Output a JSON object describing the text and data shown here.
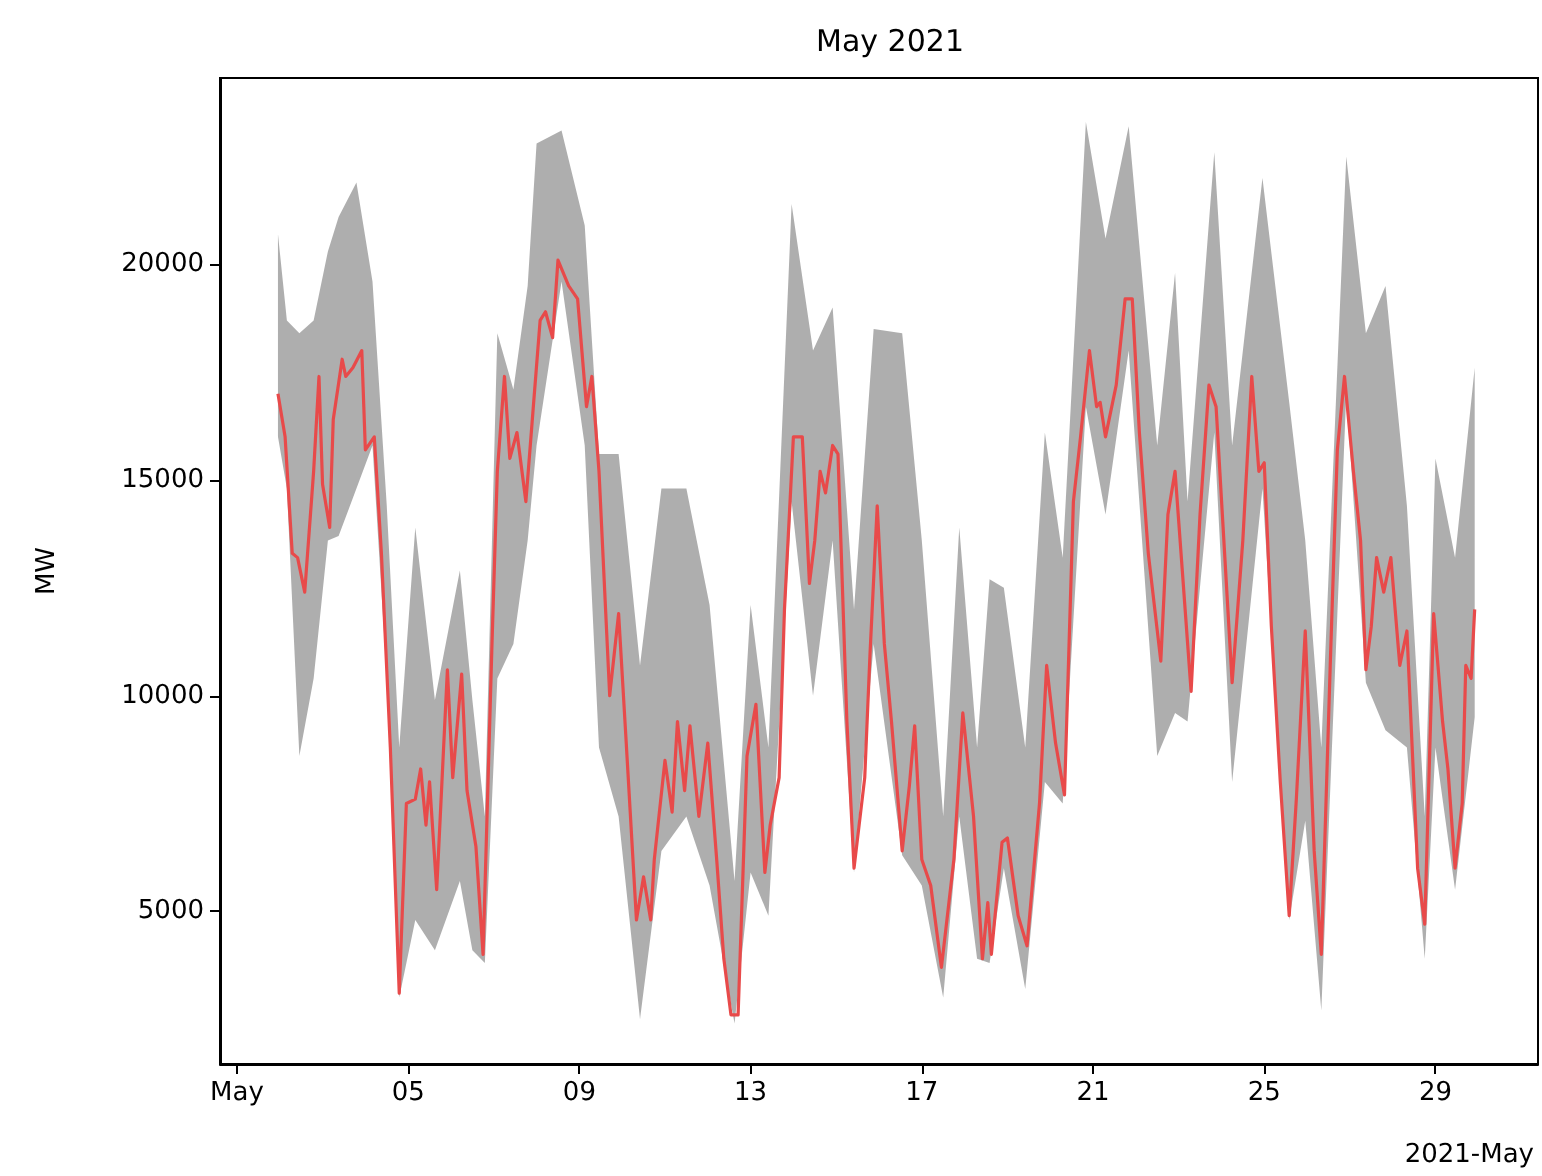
{
  "chart_data": {
    "type": "line",
    "title": "May 2021",
    "ylabel": "MW",
    "annotations": [
      "2021-May"
    ],
    "xlim": [
      "2021-04-30T14:30",
      "2021-05-31T09:30"
    ],
    "xticks": [
      {
        "value": "2021-05-01",
        "label": "May"
      },
      {
        "value": "2021-05-05",
        "label": "05"
      },
      {
        "value": "2021-05-09",
        "label": "09"
      },
      {
        "value": "2021-05-13",
        "label": "13"
      },
      {
        "value": "2021-05-17",
        "label": "17"
      },
      {
        "value": "2021-05-21",
        "label": "21"
      },
      {
        "value": "2021-05-25",
        "label": "25"
      },
      {
        "value": "2021-05-29",
        "label": "29"
      }
    ],
    "ylim": [
      1460,
      24320
    ],
    "yticks": [
      5000,
      10000,
      15000,
      20000
    ],
    "grid": false,
    "marker": "none",
    "line_style": "solid",
    "series": [
      {
        "type": "area",
        "color": "#a0a0a0",
        "x": [
          "2021-05-01T23:00",
          "2021-05-02T04:00",
          "2021-05-02T11:00",
          "2021-05-02T19:00",
          "2021-05-03T03:00",
          "2021-05-03T09:00",
          "2021-05-03T19:00",
          "2021-05-04T04:00",
          "2021-05-04T12:00",
          "2021-05-04T19:00",
          "2021-05-05T04:00",
          "2021-05-05T15:00",
          "2021-05-06T05:00",
          "2021-05-06T12:00",
          "2021-05-06T19:00",
          "2021-05-07T02:00",
          "2021-05-07T11:00",
          "2021-05-07T19:00",
          "2021-05-08T00:00",
          "2021-05-08T14:00",
          "2021-05-09T03:00",
          "2021-05-09T11:00",
          "2021-05-09T22:00",
          "2021-05-10T10:00",
          "2021-05-10T22:00",
          "2021-05-11T12:00",
          "2021-05-12T01:00",
          "2021-05-12T15:00",
          "2021-05-13T00:00",
          "2021-05-13T10:00",
          "2021-05-13T23:00",
          "2021-05-14T11:00",
          "2021-05-14T22:00",
          "2021-05-15T10:00",
          "2021-05-15T21:00",
          "2021-05-16T13:00",
          "2021-05-17T00:00",
          "2021-05-17T12:00",
          "2021-05-17T21:00",
          "2021-05-18T07:00",
          "2021-05-18T14:00",
          "2021-05-18T22:00",
          "2021-05-19T10:00",
          "2021-05-19T21:00",
          "2021-05-20T07:00",
          "2021-05-20T20:00",
          "2021-05-21T07:00",
          "2021-05-21T20:00",
          "2021-05-22T12:00",
          "2021-05-22T22:00",
          "2021-05-23T05:00",
          "2021-05-23T20:00",
          "2021-05-24T06:00",
          "2021-05-24T23:00",
          "2021-05-25T14:00",
          "2021-05-25T23:00",
          "2021-05-26T08:00",
          "2021-05-26T22:00",
          "2021-05-27T09:00",
          "2021-05-27T20:00",
          "2021-05-28T08:00",
          "2021-05-28T18:00",
          "2021-05-29T00:00",
          "2021-05-29T11:00",
          "2021-05-29T22:00"
        ],
        "values": [
          null,
          null,
          null,
          null,
          null,
          null,
          null,
          null,
          null,
          null,
          null,
          null,
          null,
          null,
          null,
          null,
          null,
          null,
          null,
          null,
          null,
          null,
          null,
          null,
          null,
          null,
          null,
          null,
          null,
          null,
          null,
          null,
          null,
          null,
          null,
          null,
          null,
          null,
          null,
          null,
          null,
          null,
          null,
          null,
          null,
          null,
          null,
          null,
          null,
          null,
          null,
          null,
          null,
          null,
          null,
          null,
          null,
          null,
          null,
          null,
          null,
          null,
          null,
          null,
          null
        ],
        "lower": [
          16000,
          14800,
          8600,
          10400,
          13600,
          13700,
          14800,
          15800,
          10400,
          3000,
          4800,
          4100,
          5700,
          4100,
          3800,
          10400,
          11200,
          13600,
          15800,
          19600,
          15800,
          8800,
          7200,
          2500,
          6400,
          7200,
          5600,
          2400,
          5900,
          4900,
          14500,
          10000,
          13600,
          5900,
          11200,
          6300,
          5600,
          3000,
          7200,
          3900,
          3800,
          6000,
          3200,
          8000,
          7500,
          16700,
          14200,
          18000,
          8600,
          9600,
          9400,
          16100,
          8000,
          14800,
          4800,
          7100,
          2700,
          17000,
          10300,
          9200,
          8800,
          3900,
          8800,
          5500,
          9500
        ],
        "upper": [
          20700,
          18700,
          18400,
          18700,
          20300,
          21100,
          21900,
          19600,
          14400,
          8800,
          13900,
          9900,
          12900,
          9900,
          7200,
          18400,
          17100,
          19500,
          22800,
          23100,
          20900,
          15600,
          15600,
          10700,
          14800,
          14800,
          12100,
          5700,
          12100,
          8800,
          21400,
          18000,
          19000,
          12000,
          18500,
          18400,
          13600,
          7200,
          13900,
          8800,
          12700,
          12500,
          8800,
          16100,
          13200,
          23300,
          20600,
          23200,
          15800,
          19800,
          14500,
          22600,
          15800,
          22000,
          16800,
          13600,
          8800,
          22500,
          18400,
          19500,
          14400,
          7200,
          15500,
          13200,
          17600
        ]
      },
      {
        "color": "#e84a4a",
        "x": [
          "2021-05-01T23:00",
          "2021-05-02T01:00",
          "2021-05-02T03:00",
          "2021-05-02T07:00",
          "2021-05-02T10:00",
          "2021-05-02T14:00",
          "2021-05-02T19:00",
          "2021-05-02T22:00",
          "2021-05-03T00:00",
          "2021-05-03T04:00",
          "2021-05-03T06:00",
          "2021-05-03T11:00",
          "2021-05-03T13:00",
          "2021-05-03T17:00",
          "2021-05-03T22:00",
          "2021-05-04T00:00",
          "2021-05-04T05:00",
          "2021-05-04T09:00",
          "2021-05-04T14:00",
          "2021-05-04T19:00",
          "2021-05-04T23:00",
          "2021-05-05T04:00",
          "2021-05-05T07:00",
          "2021-05-05T10:00",
          "2021-05-05T12:00",
          "2021-05-05T16:00",
          "2021-05-05T22:00",
          "2021-05-06T01:00",
          "2021-05-06T06:00",
          "2021-05-06T09:00",
          "2021-05-06T14:00",
          "2021-05-06T18:00",
          "2021-05-06T23:00",
          "2021-05-07T02:00",
          "2021-05-07T06:00",
          "2021-05-07T09:00",
          "2021-05-07T13:00",
          "2021-05-07T18:00",
          "2021-05-07T22:00",
          "2021-05-08T02:00",
          "2021-05-08T05:00",
          "2021-05-08T09:00",
          "2021-05-08T12:00",
          "2021-05-08T18:00",
          "2021-05-08T23:00",
          "2021-05-09T04:00",
          "2021-05-09T07:00",
          "2021-05-09T11:00",
          "2021-05-09T17:00",
          "2021-05-09T22:00",
          "2021-05-10T02:00",
          "2021-05-10T08:00",
          "2021-05-10T12:00",
          "2021-05-10T16:00",
          "2021-05-10T18:00",
          "2021-05-11T00:00",
          "2021-05-11T04:00",
          "2021-05-11T07:00",
          "2021-05-11T11:00",
          "2021-05-11T14:00",
          "2021-05-11T19:00",
          "2021-05-12T00:00",
          "2021-05-12T05:00",
          "2021-05-12T09:00",
          "2021-05-12T13:00",
          "2021-05-12T17:00",
          "2021-05-12T22:00",
          "2021-05-13T03:00",
          "2021-05-13T08:00",
          "2021-05-13T11:00",
          "2021-05-13T16:00",
          "2021-05-13T19:00",
          "2021-05-14T00:00",
          "2021-05-14T05:00",
          "2021-05-14T09:00",
          "2021-05-14T12:00",
          "2021-05-14T15:00",
          "2021-05-14T18:00",
          "2021-05-14T22:00",
          "2021-05-15T01:00",
          "2021-05-15T06:00",
          "2021-05-15T10:00",
          "2021-05-15T16:00",
          "2021-05-15T19:00",
          "2021-05-15T23:00",
          "2021-05-16T03:00",
          "2021-05-16T07:00",
          "2021-05-16T13:00",
          "2021-05-16T17:00",
          "2021-05-16T20:00",
          "2021-05-17T00:00",
          "2021-05-17T05:00",
          "2021-05-17T11:00",
          "2021-05-17T18:00",
          "2021-05-17T23:00",
          "2021-05-18T05:00",
          "2021-05-18T10:00",
          "2021-05-18T13:00",
          "2021-05-18T15:00",
          "2021-05-18T21:00",
          "2021-05-19T00:00",
          "2021-05-19T06:00",
          "2021-05-19T11:00",
          "2021-05-19T18:00",
          "2021-05-19T22:00",
          "2021-05-20T03:00",
          "2021-05-20T08:00",
          "2021-05-20T13:00",
          "2021-05-20T17:00",
          "2021-05-20T22:00",
          "2021-05-21T02:00",
          "2021-05-21T04:00",
          "2021-05-21T07:00",
          "2021-05-21T13:00",
          "2021-05-21T18:00",
          "2021-05-21T22:00",
          "2021-05-22T02:00",
          "2021-05-22T07:00",
          "2021-05-22T14:00",
          "2021-05-22T18:00",
          "2021-05-22T22:00",
          "2021-05-23T07:00",
          "2021-05-23T12:00",
          "2021-05-23T17:00",
          "2021-05-23T21:00",
          "2021-05-24T06:00",
          "2021-05-24T12:00",
          "2021-05-24T17:00",
          "2021-05-24T21:00",
          "2021-05-25T00:00",
          "2021-05-25T04:00",
          "2021-05-25T09:00",
          "2021-05-25T14:00",
          "2021-05-25T18:00",
          "2021-05-25T23:00",
          "2021-05-26T04:00",
          "2021-05-26T08:00",
          "2021-05-26T13:00",
          "2021-05-26T17:00",
          "2021-05-26T21:00",
          "2021-05-27T02:00",
          "2021-05-27T06:00",
          "2021-05-27T09:00",
          "2021-05-27T12:00",
          "2021-05-27T15:00",
          "2021-05-27T19:00",
          "2021-05-27T23:00",
          "2021-05-28T04:00",
          "2021-05-28T08:00",
          "2021-05-28T14:00",
          "2021-05-28T18:00",
          "2021-05-28T23:00",
          "2021-05-29T04:00",
          "2021-05-29T07:00",
          "2021-05-29T11:00",
          "2021-05-29T15:00",
          "2021-05-29T17:00",
          "2021-05-29T20:00",
          "2021-05-29T22:00"
        ],
        "values": [
          17000,
          16500,
          16000,
          13300,
          13200,
          12400,
          15200,
          17400,
          14900,
          13900,
          16400,
          17800,
          17400,
          17600,
          18000,
          15700,
          16000,
          13300,
          8800,
          3100,
          7500,
          7600,
          8300,
          7000,
          8000,
          5500,
          10600,
          8100,
          10500,
          7800,
          6500,
          4000,
          11200,
          15200,
          17400,
          15500,
          16100,
          14500,
          16600,
          18700,
          18900,
          18300,
          20100,
          19500,
          19200,
          16700,
          17400,
          15200,
          10000,
          11900,
          9100,
          4800,
          5800,
          4800,
          6200,
          8500,
          7300,
          9400,
          7800,
          9300,
          7200,
          8900,
          6200,
          3900,
          2600,
          2600,
          8600,
          9800,
          5900,
          7000,
          8100,
          12000,
          16000,
          16000,
          12600,
          13600,
          15200,
          14700,
          15800,
          15600,
          9400,
          6000,
          8100,
          11000,
          14400,
          11200,
          9400,
          6400,
          7900,
          9300,
          6200,
          5600,
          3700,
          6200,
          9600,
          7200,
          3900,
          5200,
          4000,
          6600,
          6700,
          4900,
          4200,
          7500,
          10700,
          8900,
          7700,
          14500,
          16000,
          18000,
          16700,
          16800,
          16000,
          17200,
          19200,
          19200,
          16100,
          13300,
          10800,
          14200,
          15200,
          10100,
          14200,
          17200,
          16700,
          10300,
          13600,
          17400,
          15200,
          15400,
          11600,
          8000,
          4900,
          7600,
          11500,
          6400,
          4000,
          10700,
          15700,
          17400,
          15200,
          13600,
          10600,
          11600,
          13200,
          12400,
          13200,
          10700,
          11500,
          6000,
          4700,
          11900,
          9400,
          8300,
          6000,
          7500,
          10700,
          10400,
          12000
        ]
      }
    ]
  }
}
